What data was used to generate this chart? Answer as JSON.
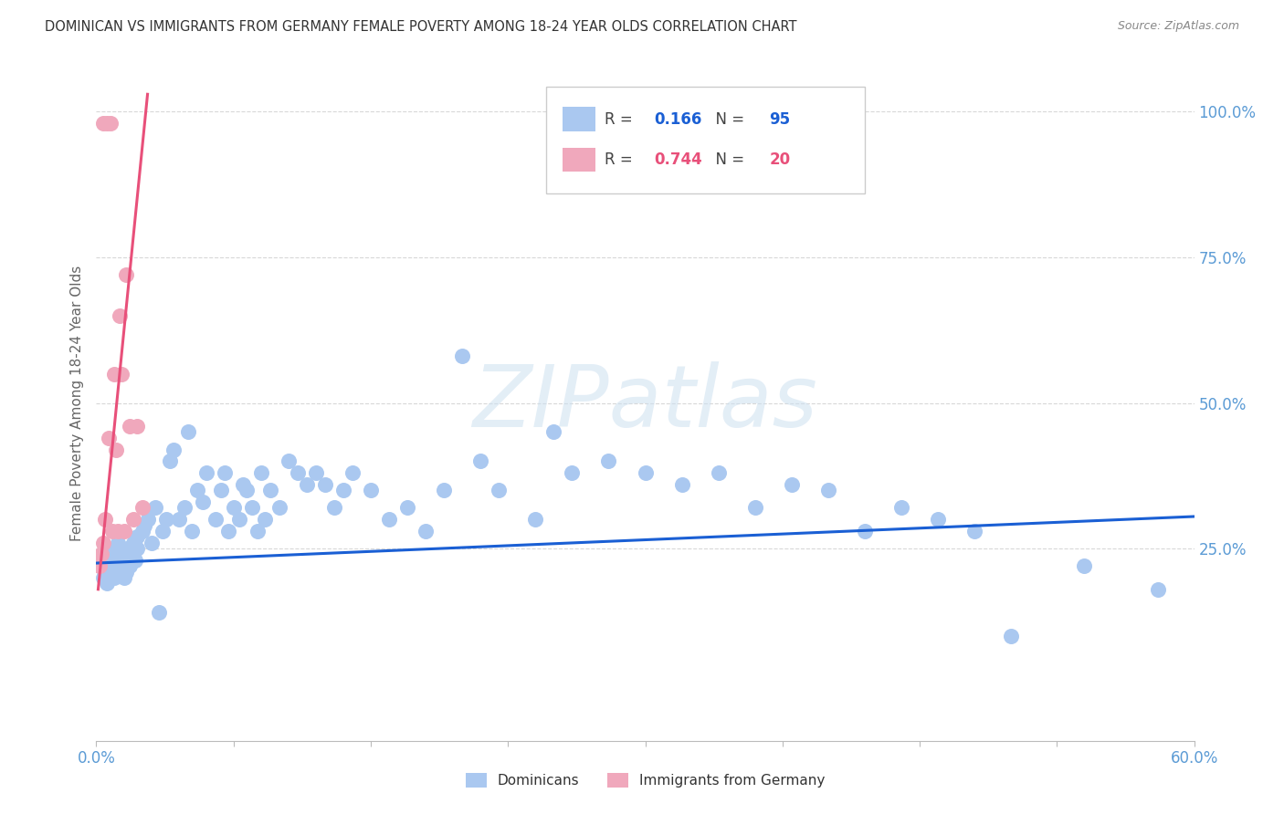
{
  "title": "DOMINICAN VS IMMIGRANTS FROM GERMANY FEMALE POVERTY AMONG 18-24 YEAR OLDS CORRELATION CHART",
  "source": "Source: ZipAtlas.com",
  "ylabel": "Female Poverty Among 18-24 Year Olds",
  "right_yticks": [
    "100.0%",
    "75.0%",
    "50.0%",
    "25.0%"
  ],
  "right_ytick_vals": [
    1.0,
    0.75,
    0.5,
    0.25
  ],
  "xmin": 0.0,
  "xmax": 0.6,
  "ymin": -0.08,
  "ymax": 1.08,
  "dominican_color": "#aac8f0",
  "germany_color": "#f0a8bc",
  "trendline_dominican_color": "#1a5fd4",
  "trendline_germany_color": "#e8507a",
  "watermark_text": "ZIPatlas",
  "dominican_scatter_x": [
    0.002,
    0.003,
    0.004,
    0.004,
    0.005,
    0.005,
    0.006,
    0.006,
    0.007,
    0.007,
    0.008,
    0.008,
    0.009,
    0.01,
    0.01,
    0.01,
    0.011,
    0.012,
    0.012,
    0.013,
    0.014,
    0.015,
    0.015,
    0.016,
    0.017,
    0.018,
    0.018,
    0.02,
    0.021,
    0.022,
    0.022,
    0.025,
    0.026,
    0.028,
    0.03,
    0.032,
    0.034,
    0.036,
    0.038,
    0.04,
    0.042,
    0.045,
    0.048,
    0.05,
    0.052,
    0.055,
    0.058,
    0.06,
    0.065,
    0.068,
    0.07,
    0.072,
    0.075,
    0.078,
    0.08,
    0.082,
    0.085,
    0.088,
    0.09,
    0.092,
    0.095,
    0.1,
    0.105,
    0.11,
    0.115,
    0.12,
    0.125,
    0.13,
    0.135,
    0.14,
    0.15,
    0.16,
    0.17,
    0.18,
    0.19,
    0.2,
    0.21,
    0.22,
    0.24,
    0.25,
    0.26,
    0.28,
    0.3,
    0.32,
    0.34,
    0.36,
    0.38,
    0.4,
    0.42,
    0.44,
    0.46,
    0.48,
    0.5,
    0.54,
    0.58
  ],
  "dominican_scatter_y": [
    0.22,
    0.23,
    0.24,
    0.2,
    0.21,
    0.25,
    0.19,
    0.22,
    0.23,
    0.2,
    0.24,
    0.21,
    0.22,
    0.25,
    0.22,
    0.2,
    0.23,
    0.21,
    0.26,
    0.22,
    0.24,
    0.23,
    0.2,
    0.21,
    0.25,
    0.24,
    0.22,
    0.26,
    0.23,
    0.27,
    0.25,
    0.28,
    0.29,
    0.3,
    0.26,
    0.32,
    0.14,
    0.28,
    0.3,
    0.4,
    0.42,
    0.3,
    0.32,
    0.45,
    0.28,
    0.35,
    0.33,
    0.38,
    0.3,
    0.35,
    0.38,
    0.28,
    0.32,
    0.3,
    0.36,
    0.35,
    0.32,
    0.28,
    0.38,
    0.3,
    0.35,
    0.32,
    0.4,
    0.38,
    0.36,
    0.38,
    0.36,
    0.32,
    0.35,
    0.38,
    0.35,
    0.3,
    0.32,
    0.28,
    0.35,
    0.58,
    0.4,
    0.35,
    0.3,
    0.45,
    0.38,
    0.4,
    0.38,
    0.36,
    0.38,
    0.32,
    0.36,
    0.35,
    0.28,
    0.32,
    0.3,
    0.28,
    0.1,
    0.22,
    0.18
  ],
  "germany_scatter_x": [
    0.002,
    0.003,
    0.004,
    0.004,
    0.005,
    0.006,
    0.007,
    0.008,
    0.009,
    0.01,
    0.011,
    0.012,
    0.013,
    0.014,
    0.015,
    0.016,
    0.018,
    0.02,
    0.022,
    0.025
  ],
  "germany_scatter_y": [
    0.22,
    0.24,
    0.26,
    0.98,
    0.3,
    0.98,
    0.44,
    0.98,
    0.28,
    0.55,
    0.42,
    0.28,
    0.65,
    0.55,
    0.28,
    0.72,
    0.46,
    0.3,
    0.46,
    0.32
  ],
  "dominican_trendline_x0": 0.0,
  "dominican_trendline_x1": 0.6,
  "dominican_trendline_y0": 0.225,
  "dominican_trendline_y1": 0.305,
  "germany_trendline_x0": 0.001,
  "germany_trendline_x1": 0.028,
  "germany_trendline_y0": 0.18,
  "germany_trendline_y1": 1.03,
  "legend_r1": "0.166",
  "legend_n1": "95",
  "legend_r2": "0.744",
  "legend_n2": "20",
  "legend1_color": "#aac8f0",
  "legend2_color": "#f0a8bc",
  "legend_val_color1": "#1a5fd4",
  "legend_val_color2": "#e8507a",
  "bottom_legend_label1": "Dominicans",
  "bottom_legend_label2": "Immigrants from Germany",
  "tick_color": "#5b9bd5",
  "grid_color": "#d8d8d8",
  "title_color": "#333333",
  "source_color": "#888888"
}
